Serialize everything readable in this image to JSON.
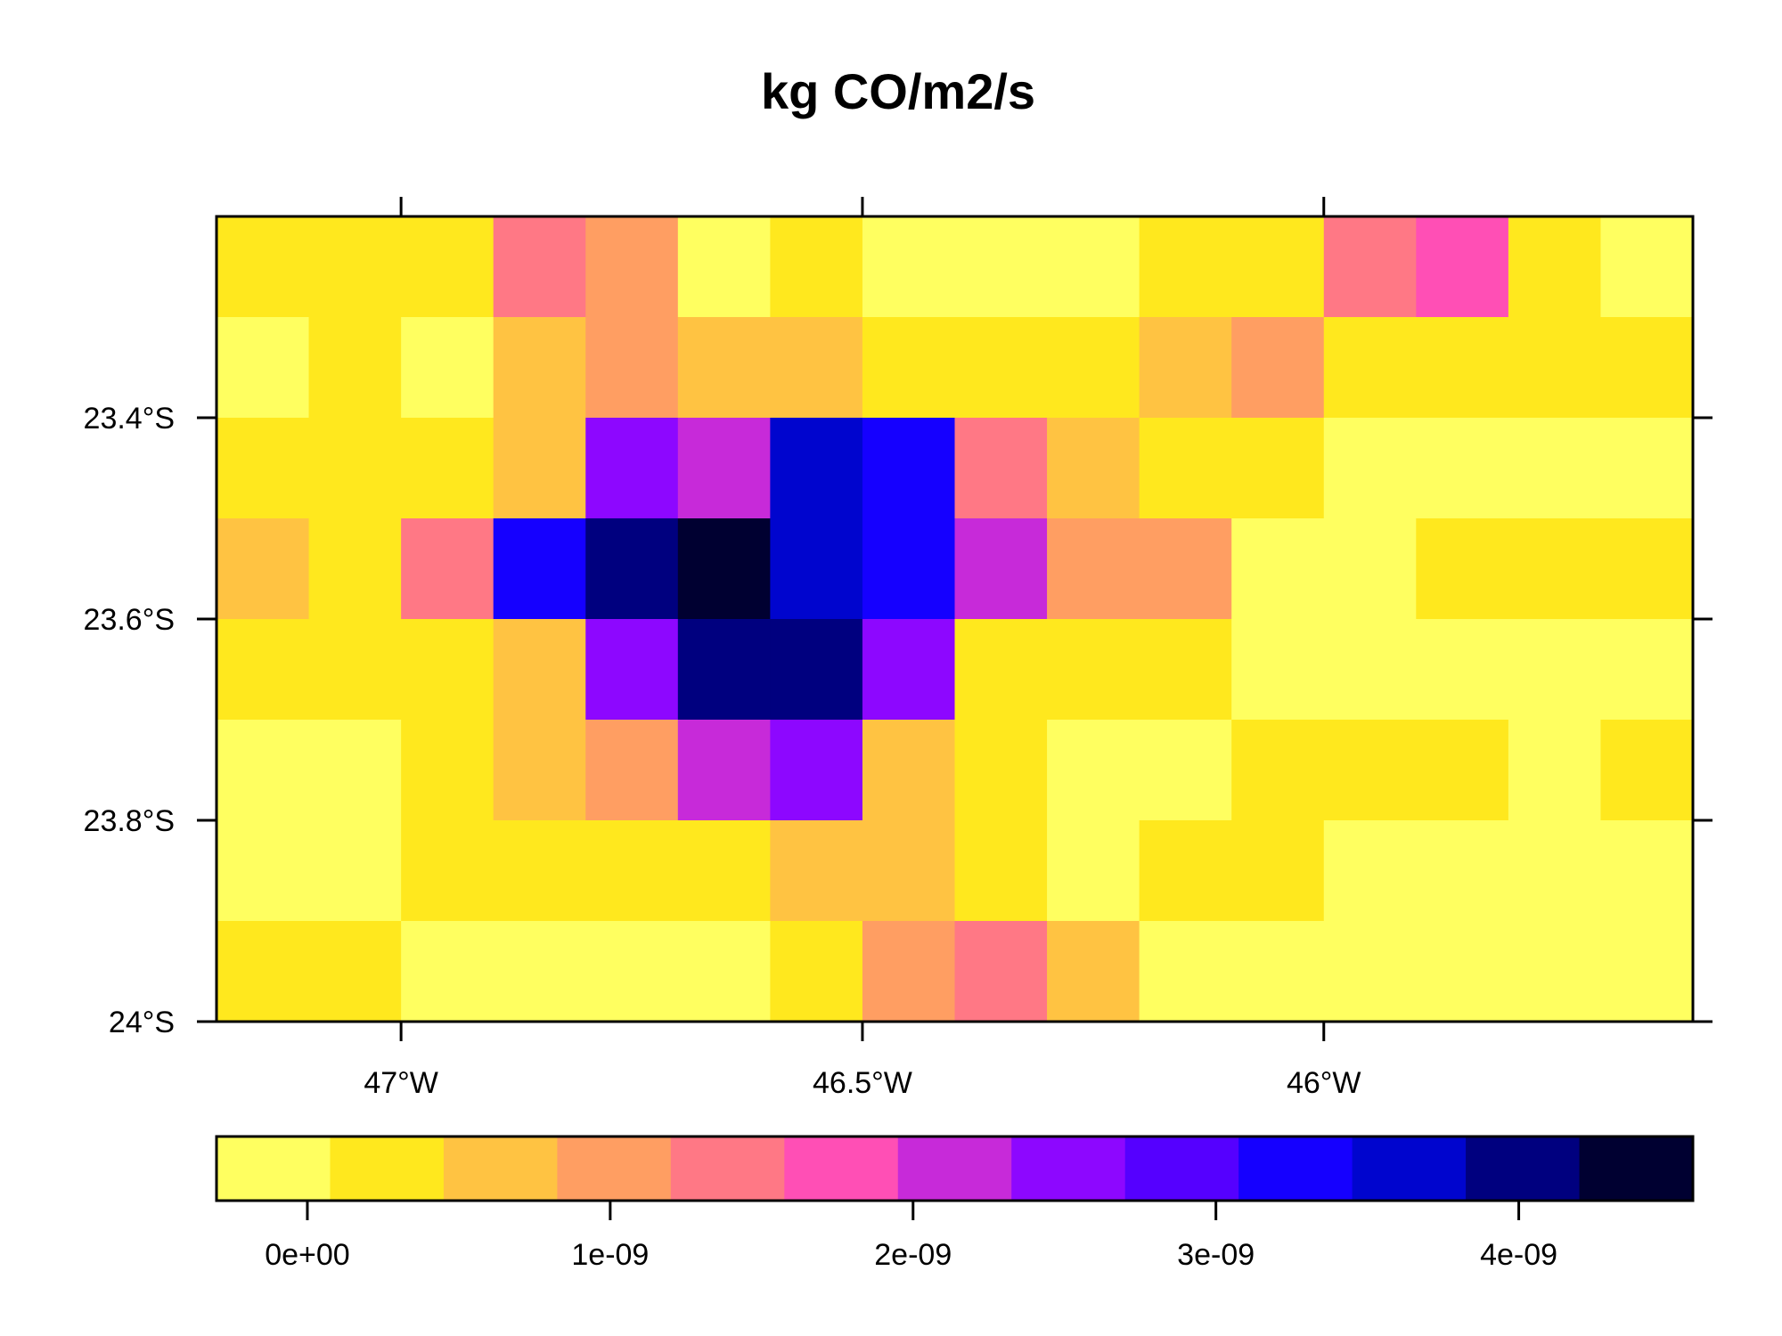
{
  "chart_data": {
    "type": "heatmap",
    "title": "kg CO/m2/s",
    "x_range": [
      -47.2,
      -45.6
    ],
    "y_range": [
      -24.0,
      -23.2
    ],
    "x_ticks": [
      {
        "value": -47.0,
        "label": "47°W"
      },
      {
        "value": -46.5,
        "label": "46.5°W"
      },
      {
        "value": -46.0,
        "label": "46°W"
      }
    ],
    "y_ticks": [
      {
        "value": -23.4,
        "label": "23.4°S"
      },
      {
        "value": -23.6,
        "label": "23.6°S"
      },
      {
        "value": -23.8,
        "label": "23.8°S"
      },
      {
        "value": -24.0,
        "label": "24°S"
      }
    ],
    "grid_cols": 16,
    "grid_rows": 8,
    "palette": [
      "#FFFF60",
      "#FFE81E",
      "#FFC342",
      "#FF9E62",
      "#FF7885",
      "#FF4FB5",
      "#C72AD9",
      "#8D07FF",
      "#5500FF",
      "#1500FF",
      "#0005CE",
      "#00007F",
      "#000031"
    ],
    "levels": [
      -3e-10,
      7.5e-11,
      4.5e-10,
      8.25e-10,
      1.2e-09,
      1.575e-09,
      1.95e-09,
      2.325e-09,
      2.7e-09,
      3.075e-09,
      3.45e-09,
      3.825e-09,
      4.2e-09,
      4.575e-09
    ],
    "colorbar_ticks": [
      {
        "value": 0,
        "label": "0e+00"
      },
      {
        "value": 1e-09,
        "label": "1e-09"
      },
      {
        "value": 2e-09,
        "label": "2e-09"
      },
      {
        "value": 3e-09,
        "label": "3e-09"
      },
      {
        "value": 4e-09,
        "label": "4e-09"
      }
    ],
    "cells": [
      [
        1,
        1,
        1,
        4,
        3,
        0,
        1,
        0,
        0,
        0,
        1,
        1,
        4,
        5,
        1,
        0
      ],
      [
        0,
        1,
        0,
        2,
        3,
        2,
        2,
        1,
        1,
        1,
        2,
        3,
        1,
        1,
        1,
        1
      ],
      [
        1,
        1,
        1,
        2,
        7,
        6,
        10,
        9,
        4,
        2,
        1,
        1,
        0,
        0,
        0,
        0
      ],
      [
        2,
        1,
        4,
        9,
        11,
        12,
        10,
        9,
        6,
        3,
        3,
        0,
        0,
        1,
        1,
        1
      ],
      [
        1,
        1,
        1,
        2,
        7,
        11,
        11,
        7,
        1,
        1,
        1,
        0,
        0,
        0,
        0,
        0
      ],
      [
        0,
        0,
        1,
        2,
        3,
        6,
        7,
        2,
        1,
        0,
        0,
        1,
        1,
        1,
        0,
        1
      ],
      [
        0,
        0,
        1,
        1,
        1,
        1,
        2,
        2,
        1,
        0,
        1,
        1,
        0,
        0,
        0,
        0
      ],
      [
        1,
        1,
        0,
        0,
        0,
        0,
        1,
        3,
        4,
        2,
        0,
        0,
        0,
        0,
        0,
        0
      ]
    ]
  }
}
